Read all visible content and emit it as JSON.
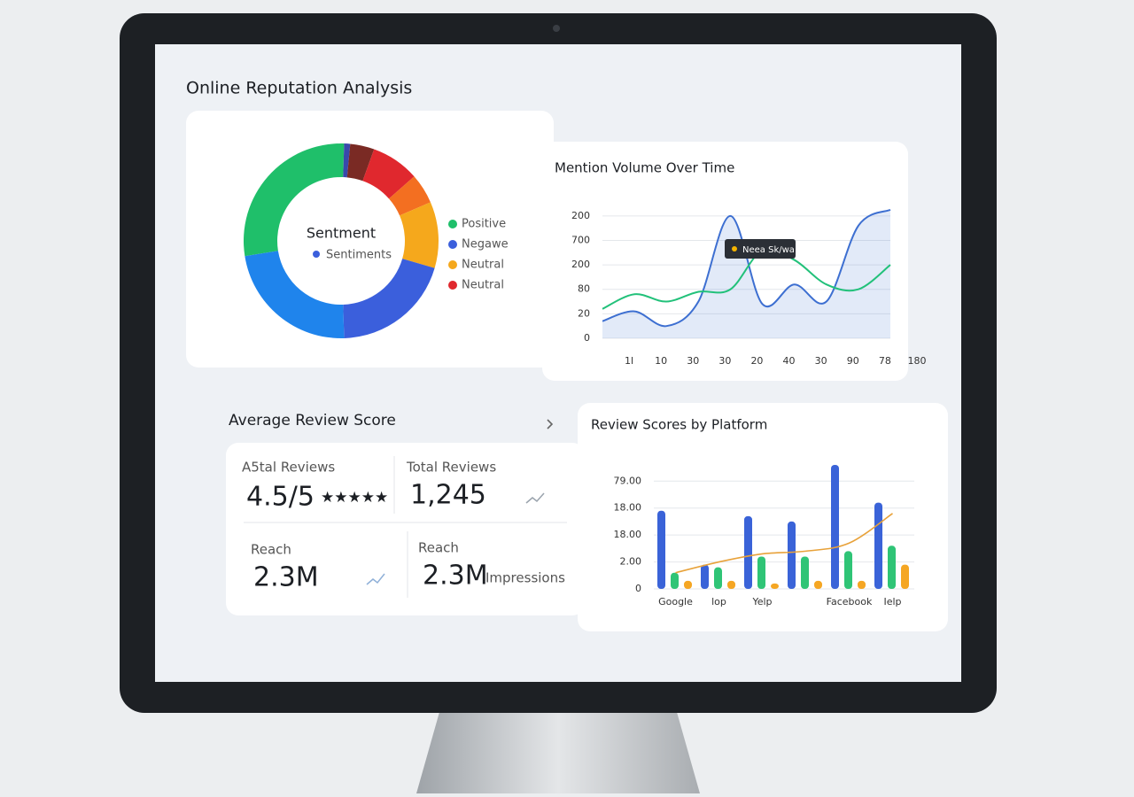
{
  "title": "Online Reputation Analysis",
  "review_section": {
    "title": "Average Review Score",
    "kpis": [
      {
        "label": "A5tal Reviews",
        "value": "4.5/5"
      },
      {
        "label": "Total Reviews",
        "value": "1,245"
      },
      {
        "label": "Reach",
        "value": "2.3M"
      },
      {
        "label": "Reach",
        "value": "2.3M",
        "unit": "Impressions"
      }
    ]
  },
  "chart_data": [
    {
      "type": "pie",
      "title": "Sentment",
      "subtitle": "Sentiments",
      "categories": [
        "Positive",
        null,
        null,
        "Neutral",
        null,
        "Neutral",
        "Negawe",
        null
      ],
      "values": [
        28,
        1,
        4,
        8,
        5,
        11,
        20,
        23
      ],
      "colors": [
        "#1fbf6a",
        "#3949ab",
        "#7a2a24",
        "#e0282e",
        "#f36f21",
        "#f5a81c",
        "#3b5fdc",
        "#1f84ec"
      ]
    },
    {
      "type": "line",
      "title": "Mention Volume Over Time",
      "annotation": "Neea Sk/wa",
      "categories": [
        "1l",
        "10",
        "30",
        "30",
        "20",
        "40",
        "30",
        "90",
        "78",
        "180"
      ],
      "ylim": [
        0,
        110
      ],
      "yticks": [
        0,
        20,
        {
          "value": 40,
          "label": "80"
        },
        {
          "value": 60,
          "label": "200"
        },
        {
          "value": 80,
          "label": "700"
        },
        {
          "value": 100,
          "label": "200"
        }
      ],
      "grid": true,
      "series": [
        {
          "color": "#3d6fd1",
          "fill": true,
          "values": [
            14,
            22,
            10,
            30,
            100,
            28,
            44,
            30,
            92,
            105
          ]
        },
        {
          "color": "#22c17a",
          "values": [
            24,
            36,
            30,
            38,
            40,
            72,
            64,
            44,
            40,
            60
          ]
        }
      ]
    },
    {
      "type": "bar",
      "title": "Review Scores by Platform",
      "categories": [
        "Google",
        "lop",
        "Yelp",
        null,
        "Facebook",
        "Ielp"
      ],
      "ylim": [
        0,
        4.6
      ],
      "yticks": [
        0,
        {
          "value": 1,
          "label": "2.00"
        },
        {
          "value": 2,
          "label": "18.00"
        },
        {
          "value": 3,
          "label": "18.00"
        },
        {
          "value": 4,
          "label": "79.00"
        }
      ],
      "grid": true,
      "series": [
        {
          "color": "#3a63d8",
          "values": [
            2.9,
            0.9,
            2.7,
            2.5,
            4.6,
            3.2
          ]
        },
        {
          "color": "#2fc476",
          "values": [
            0.6,
            0.8,
            1.2,
            1.2,
            1.4,
            1.6
          ]
        },
        {
          "color": "#f5a623",
          "values": [
            0.3,
            0.3,
            0.2,
            0.3,
            0.3,
            0.9
          ]
        },
        {
          "color": "#e8a23a",
          "type": "line",
          "values": [
            0.6,
            1.0,
            1.3,
            1.4,
            1.7,
            2.8
          ]
        }
      ]
    }
  ]
}
